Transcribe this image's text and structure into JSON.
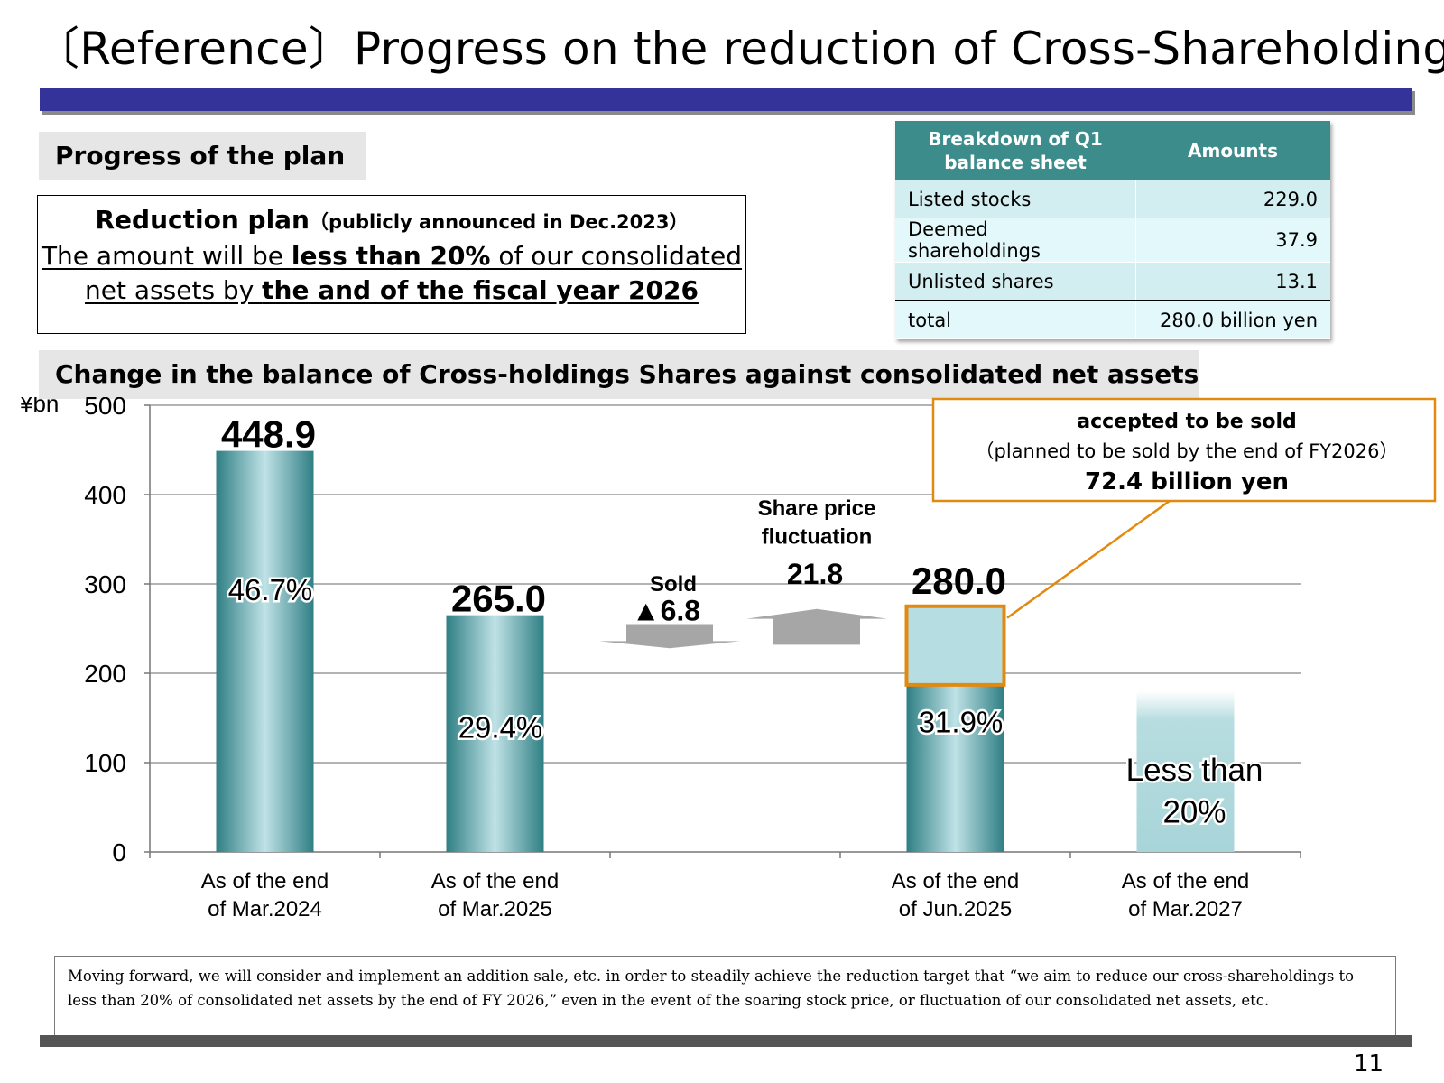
{
  "page": {
    "title": "〔Reference〕Progress on the reduction of Cross-Shareholdings",
    "page_number": "11"
  },
  "plan": {
    "section_title": "Progress of the plan",
    "heading_bold": "Reduction plan",
    "heading_note": "（publicly announced in Dec.2023）",
    "line1_a": "The amount will be ",
    "line1_b": "less than 20%",
    "line1_c": " of our consolidated",
    "line2_a": "net assets by ",
    "line2_b": "the and of the fiscal year 2026"
  },
  "breakdown": {
    "header_item": "Breakdown of Q1 balance sheet",
    "header_amount": "Amounts",
    "rows": [
      {
        "item": "Listed stocks",
        "amount": "229.0"
      },
      {
        "item": "Deemed shareholdings",
        "amount": "37.9"
      },
      {
        "item": "Unlisted shares",
        "amount": "13.1"
      }
    ],
    "total_label": "total",
    "total_amount": "280.0 billion yen"
  },
  "chart_section_title": "Change in the balance of Cross-holdings Shares against consolidated net assets",
  "chart_data": {
    "type": "bar",
    "title": "Change in the balance of Cross-holdings Shares against consolidated net assets",
    "ylabel": "¥bn",
    "ylim": [
      0,
      500
    ],
    "yticks": [
      0,
      100,
      200,
      300,
      400,
      500
    ],
    "categories": [
      [
        "As of the end",
        "of Mar.2024"
      ],
      [
        "As of the end",
        "of Mar.2025"
      ],
      [
        "",
        ""
      ],
      [
        "As of the end",
        "of Jun.2025"
      ],
      [
        "As of the end",
        "of Mar.2027"
      ]
    ],
    "bars": [
      {
        "slot": 0,
        "value": 448.9,
        "label": "448.9",
        "pct": "46.7%"
      },
      {
        "slot": 1,
        "value": 265.0,
        "label": "265.0",
        "pct": "29.4%"
      },
      {
        "slot": 3,
        "value": 280.0,
        "label": "280.0",
        "pct": "31.9%",
        "highlight_from": 187,
        "highlight_to": 275
      },
      {
        "slot": 4,
        "value": 180,
        "label": "",
        "pct": "Less than 20%",
        "target": true
      }
    ],
    "movements": [
      {
        "label": "Sold",
        "value": "▲6.8",
        "direction": "down"
      },
      {
        "label": "Share price fluctuation",
        "value": "21.8",
        "direction": "up"
      }
    ],
    "callout": {
      "line1": "accepted to be sold",
      "line2": "（planned to be sold by the end of FY2026）",
      "line3": "72.4 billion yen"
    }
  },
  "note": "Moving forward, we will consider and implement an addition sale, etc. in order to steadily achieve the reduction target that “we aim to reduce our cross-shareholdings to less than 20% of consolidated net assets by the end of FY 2026,” even in the event of the soaring stock price, or fluctuation of our consolidated net assets, etc.",
  "colors": {
    "title_bar": "#33339a",
    "header_teal": "#3d8c8c",
    "bar_dark": "#3a8a8f",
    "bar_light": "#b9dde1",
    "highlight": "#e2890f",
    "arrow": "#a6a6a6"
  }
}
